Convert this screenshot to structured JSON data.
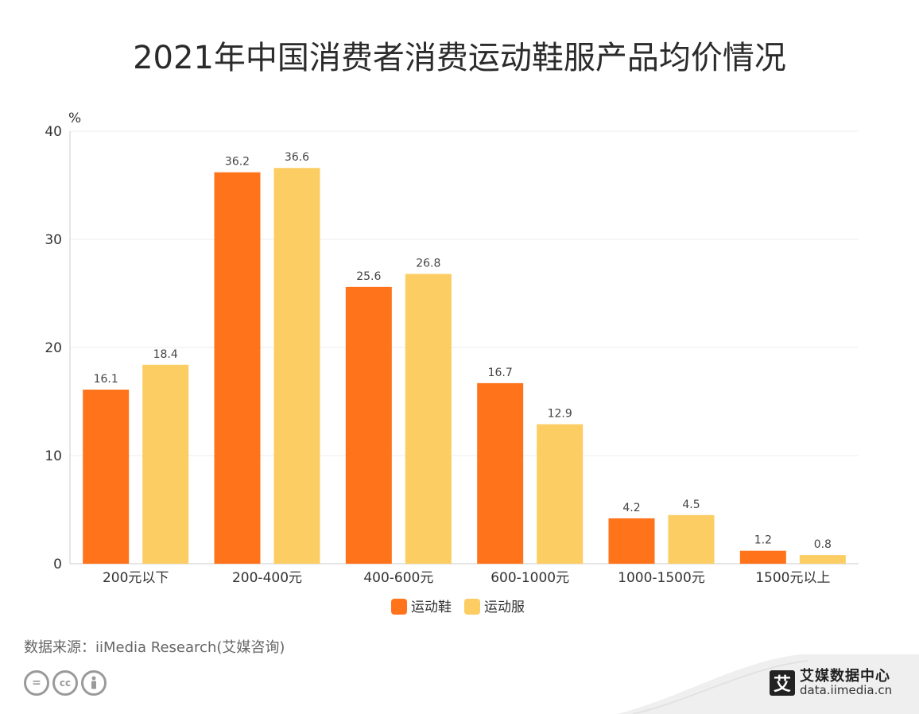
{
  "title": "2021年中国消费者消费运动鞋服产品均价情况",
  "chart_data": {
    "type": "bar",
    "unit_label": "%",
    "categories": [
      "200元以下",
      "200-400元",
      "400-600元",
      "600-1000元",
      "1000-1500元",
      "1500元以上"
    ],
    "series": [
      {
        "name": "运动鞋",
        "color": "#FF731A",
        "values": [
          16.1,
          36.2,
          25.6,
          16.7,
          4.2,
          1.2
        ]
      },
      {
        "name": "运动服",
        "color": "#FCCD62",
        "values": [
          18.4,
          36.6,
          26.8,
          12.9,
          4.5,
          0.8
        ]
      }
    ],
    "ylim": [
      0,
      40
    ],
    "yticks": [
      0,
      10,
      20,
      30,
      40
    ],
    "grid": true,
    "legend_position": "bottom"
  },
  "source": "数据来源：iiMedia Research(艾媒咨询)",
  "license_icons": [
    "equals-icon",
    "cc-icon",
    "person-icon"
  ],
  "brand": {
    "logo_char": "艾",
    "name": "艾媒数据中心",
    "url": "data.iimedia.cn"
  }
}
